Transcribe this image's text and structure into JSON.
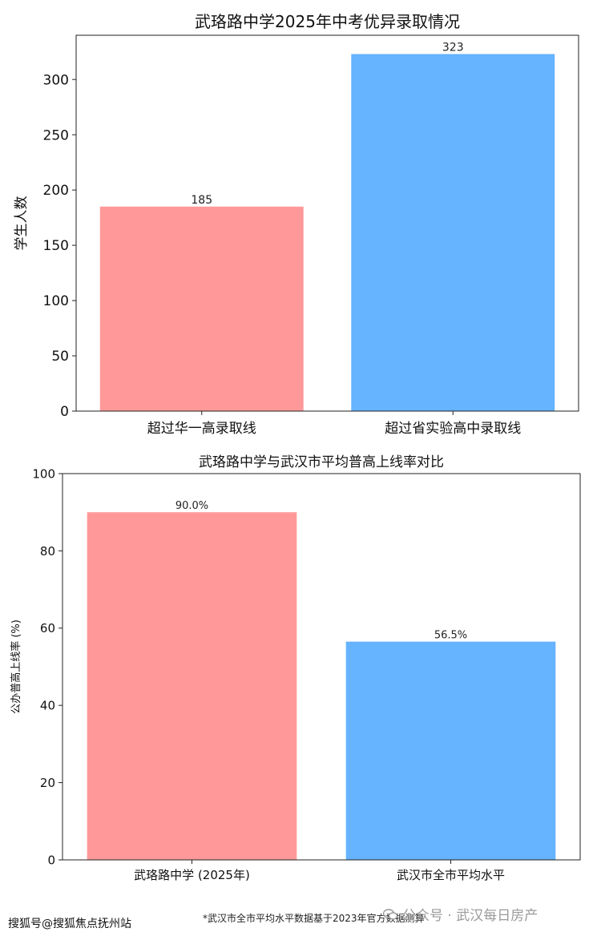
{
  "chart_data": [
    {
      "type": "bar",
      "title": "武珞路中学2025年中考优异录取情况",
      "xlabel": "",
      "ylabel": "学生人数",
      "categories": [
        "超过华一高录取线",
        "超过省实验高中录取线"
      ],
      "values": [
        185,
        323
      ],
      "value_labels": [
        "185",
        "323"
      ],
      "colors": [
        "#ff9999",
        "#66b3ff"
      ],
      "ylim": [
        0,
        340
      ],
      "yticks": [
        0,
        50,
        100,
        150,
        200,
        250,
        300
      ],
      "grid": false,
      "legend": "none"
    },
    {
      "type": "bar",
      "title": "武珞路中学与武汉市平均普高上线率对比",
      "xlabel": "",
      "ylabel": "公办普高上线率 (%)",
      "categories": [
        "武珞路中学 (2025年)",
        "武汉市全市平均水平"
      ],
      "values": [
        90.0,
        56.5
      ],
      "value_labels": [
        "90.0%",
        "56.5%"
      ],
      "colors": [
        "#ff9999",
        "#66b3ff"
      ],
      "ylim": [
        0,
        100
      ],
      "yticks": [
        0,
        20,
        40,
        60,
        80,
        100
      ],
      "grid": false,
      "legend": "none"
    }
  ],
  "footer": {
    "source": "搜狐号@搜狐焦点抚州站",
    "note": "*武汉市全市平均水平数据基于2023年官方数据测算",
    "watermark": "公众号 · 武汉每日房产"
  }
}
